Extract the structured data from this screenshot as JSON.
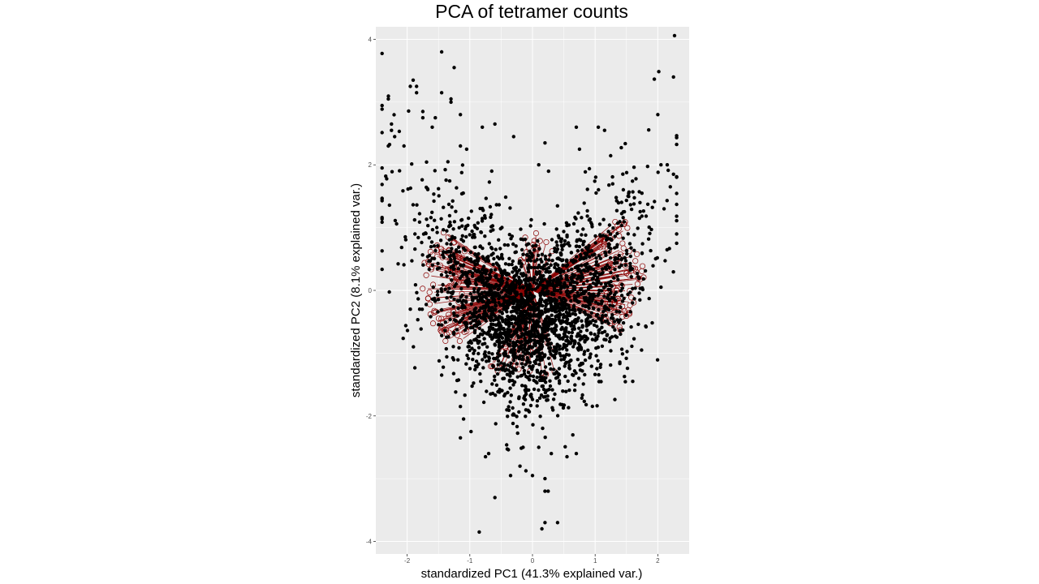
{
  "chart_data": {
    "type": "scatter",
    "title": "PCA of tetramer counts",
    "xlabel": "standardized PC1 (41.3% explained var.)",
    "ylabel": "standardized PC2 (8.1% explained var.)",
    "xlim": [
      -2.5,
      2.5
    ],
    "ylim": [
      -4.2,
      4.2
    ],
    "x_ticks": [
      -2,
      -1,
      0,
      1,
      2
    ],
    "y_ticks": [
      -4,
      -2,
      0,
      2,
      4
    ],
    "x_tick_labels": [
      "-2",
      "-1",
      "0",
      "1",
      "2"
    ],
    "y_tick_labels": [
      "-4",
      "-2",
      "0",
      "2",
      "4"
    ],
    "grid": true,
    "legend": "none",
    "colors": {
      "panel": "#ebebeb",
      "grid_major": "#ffffff",
      "points": "#000000",
      "loadings": "#8b0000"
    },
    "series": [
      {
        "marker": "filled-circle",
        "color": "#000000",
        "values": [
          [
            2.25,
            3.4
          ],
          [
            -1.45,
            3.8
          ],
          [
            -1.25,
            3.55
          ],
          [
            -1.45,
            3.15
          ],
          [
            -1.95,
            3.25
          ],
          [
            -1.85,
            3.25
          ],
          [
            -1.85,
            3.15
          ],
          [
            -2.3,
            3.05
          ],
          [
            -1.3,
            3.05
          ],
          [
            -1.3,
            3.0
          ],
          [
            -1.75,
            2.85
          ],
          [
            -1.75,
            2.75
          ],
          [
            -1.55,
            2.75
          ],
          [
            -1.15,
            2.8
          ],
          [
            -0.6,
            2.65
          ],
          [
            -0.8,
            2.6
          ],
          [
            -1.6,
            2.6
          ],
          [
            -2.25,
            2.65
          ],
          [
            -2.25,
            2.55
          ],
          [
            -2.2,
            2.45
          ],
          [
            -0.3,
            2.45
          ],
          [
            1.05,
            2.6
          ],
          [
            0.7,
            2.6
          ],
          [
            2.0,
            2.8
          ],
          [
            1.15,
            2.55
          ],
          [
            0.2,
            2.35
          ],
          [
            -2.3,
            2.3
          ],
          [
            -2.05,
            2.3
          ],
          [
            -1.15,
            2.3
          ],
          [
            -1.05,
            2.25
          ],
          [
            0.75,
            2.25
          ],
          [
            -1.35,
            2.05
          ],
          [
            0.1,
            2.0
          ],
          [
            -2.4,
            1.95
          ],
          [
            2.05,
            2.0
          ],
          [
            2.15,
            2.0
          ],
          [
            2.25,
            1.85
          ],
          [
            -0.65,
            1.9
          ],
          [
            2.2,
            1.65
          ],
          [
            2.3,
            0.9
          ],
          [
            2.1,
            1.3
          ],
          [
            2.05,
            0.05
          ],
          [
            1.6,
            -1.45
          ],
          [
            -1.95,
            -0.3
          ],
          [
            -1.8,
            -0.3
          ],
          [
            -1.9,
            -0.9
          ],
          [
            -1.45,
            -1.35
          ],
          [
            -1.15,
            -1.85
          ],
          [
            -1.1,
            -2.05
          ],
          [
            -1.15,
            -2.35
          ],
          [
            -0.98,
            -2.25
          ],
          [
            -0.75,
            -2.65
          ],
          [
            -0.7,
            -2.6
          ],
          [
            -0.6,
            -3.3
          ],
          [
            -0.85,
            -3.85
          ],
          [
            -0.35,
            -2.95
          ],
          [
            -0.2,
            -2.8
          ],
          [
            0.0,
            -2.95
          ],
          [
            0.2,
            -3.2
          ],
          [
            0.25,
            -3.2
          ],
          [
            0.2,
            -3.0
          ],
          [
            0.2,
            -3.7
          ],
          [
            0.4,
            -3.7
          ],
          [
            0.15,
            -3.8
          ],
          [
            0.7,
            -2.6
          ],
          [
            0.55,
            -2.65
          ],
          [
            0.3,
            -2.6
          ],
          [
            -0.15,
            -2.5
          ],
          [
            0.1,
            -2.5
          ]
        ]
      }
    ]
  }
}
